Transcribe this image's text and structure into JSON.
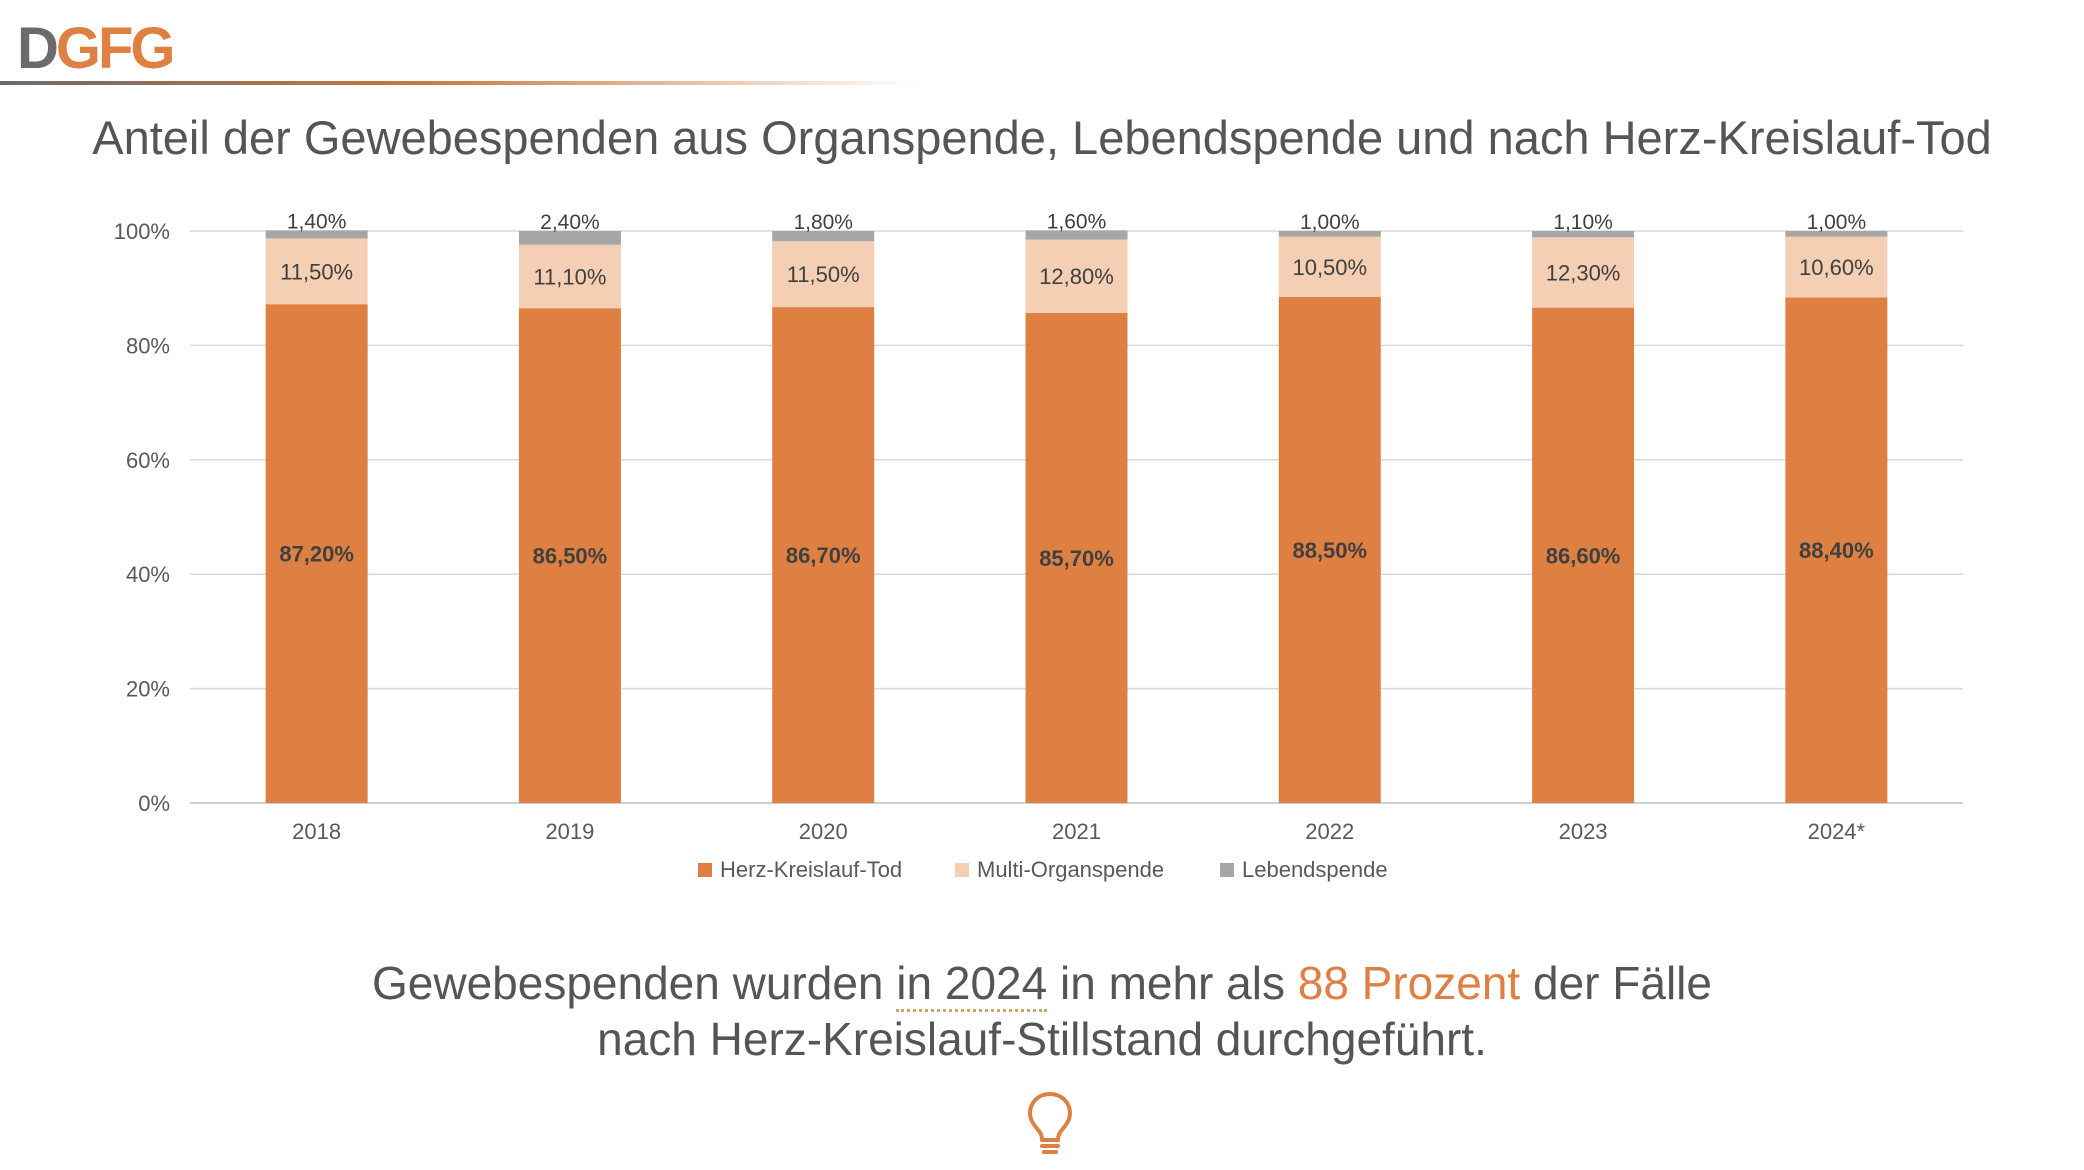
{
  "logo": {
    "text_gray": "D",
    "text_orange": "GFG"
  },
  "title": "Anteil der Gewebespenden aus Organspende, Lebendspende und nach Herz-Kreislauf-Tod",
  "summary": {
    "part1": "Gewebespenden wurden ",
    "part2": "in 2024",
    "part3": " in mehr als ",
    "part4": "88 Prozent",
    "part5": " der Fälle",
    "line2": "nach Herz-Kreislauf-Stillstand durchgeführt."
  },
  "icon": "lightbulb-icon",
  "colors": {
    "orange": "#df8043",
    "peach": "#f4cfb4",
    "gray": "#a6a6a6",
    "accent": "#df8043"
  },
  "chart_data": {
    "type": "bar",
    "stacked": true,
    "categories": [
      "2018",
      "2019",
      "2020",
      "2021",
      "2022",
      "2023",
      "2024*"
    ],
    "series": [
      {
        "name": "Herz-Kreislauf-Tod",
        "values": [
          87.2,
          86.5,
          86.7,
          85.7,
          88.5,
          86.6,
          88.4
        ],
        "labels": [
          "87,20%",
          "86,50%",
          "86,70%",
          "85,70%",
          "88,50%",
          "86,60%",
          "88,40%"
        ],
        "color": "#df8043"
      },
      {
        "name": "Multi-Organspende",
        "values": [
          11.5,
          11.1,
          11.5,
          12.8,
          10.5,
          12.3,
          10.6
        ],
        "labels": [
          "11,50%",
          "11,10%",
          "11,50%",
          "12,80%",
          "10,50%",
          "12,30%",
          "10,60%"
        ],
        "color": "#f4cfb4"
      },
      {
        "name": "Lebendspende",
        "values": [
          1.4,
          2.4,
          1.8,
          1.6,
          1.0,
          1.1,
          1.0
        ],
        "labels": [
          "1,40%",
          "2,40%",
          "1,80%",
          "1,60%",
          "1,00%",
          "1,10%",
          "1,00%"
        ],
        "color": "#a6a6a6"
      }
    ],
    "ylim": [
      0,
      100
    ],
    "yticks": [
      "0%",
      "20%",
      "40%",
      "60%",
      "80%",
      "100%"
    ],
    "legend_position": "bottom",
    "grid": true
  }
}
